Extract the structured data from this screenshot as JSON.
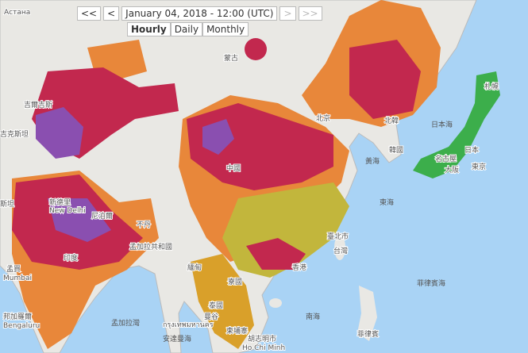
{
  "controls": {
    "first": "<<",
    "prev": "<",
    "datetime": "January 04, 2018 - 12:00 (UTC)",
    "next": ">",
    "last": ">>"
  },
  "tabs": [
    "Hourly",
    "Daily",
    "Monthly"
  ],
  "labels": [
    "Астана",
    "吉爾吉斯",
    "吉克斯坦",
    "蒙古",
    "中國",
    "北京",
    "北韓",
    "韓國",
    "日本海",
    "黃海",
    "東海",
    "日本",
    "名古屋",
    "東京",
    "札幌",
    "大阪",
    "新德里",
    "New Delhi",
    "尼泊爾",
    "不丹",
    "孟加拉共和國",
    "印度",
    "孟買",
    "Mumbai",
    "邦加羅爾",
    "Bengaluru",
    "緬甸",
    "寮國",
    "泰國",
    "臺北市",
    "台灣",
    "香港",
    "曼谷",
    "กรุงเทพมหานคร",
    "柬埔寨",
    "胡志明市",
    "Ho Chi Minh",
    "菲律賓",
    "孟加拉灣",
    "安達曼海",
    "南海",
    "菲律賓海",
    "斯坦"
  ]
}
